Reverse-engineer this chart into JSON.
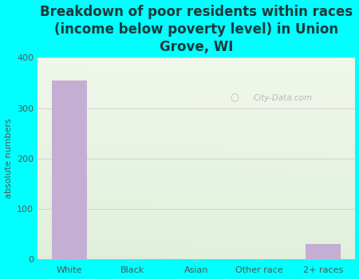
{
  "categories": [
    "White",
    "Black",
    "Asian",
    "Other race",
    "2+ races"
  ],
  "values": [
    355,
    0,
    0,
    0,
    30
  ],
  "bar_color": "#c4aed4",
  "title": "Breakdown of poor residents within races\n(income below poverty level) in Union\nGrove, WI",
  "ylabel": "absolute numbers",
  "ylim": [
    0,
    400
  ],
  "yticks": [
    0,
    100,
    200,
    300,
    400
  ],
  "background_color": "#00ffff",
  "plot_bg_top_left": "#ddeedd",
  "plot_bg_top_right": "#f5f8f0",
  "plot_bg_bottom": "#e8f2e0",
  "title_fontsize": 12,
  "title_color": "#1a3a3a",
  "axis_label_fontsize": 8,
  "tick_fontsize": 8,
  "watermark": "City-Data.com",
  "grid_color": "#cccccc"
}
